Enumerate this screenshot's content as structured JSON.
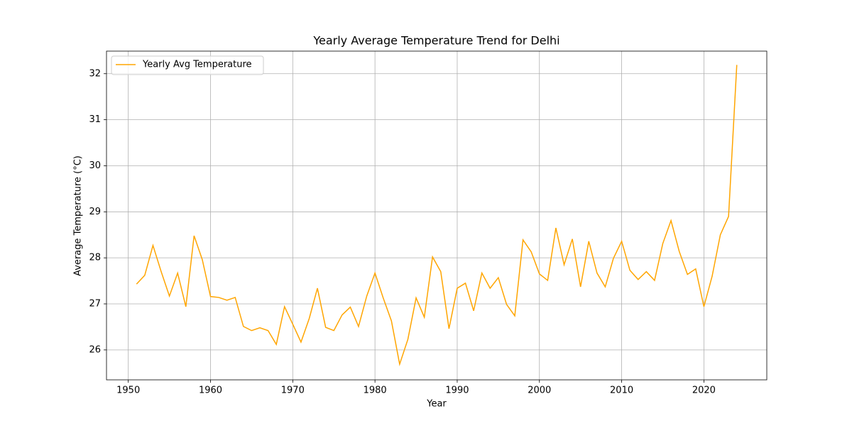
{
  "chart_data": {
    "type": "line",
    "title": "Yearly Average Temperature Trend for Delhi",
    "x_label": "Year",
    "y_label": "Average Temperature (°C)",
    "x": [
      1951,
      1952,
      1953,
      1954,
      1955,
      1956,
      1957,
      1958,
      1959,
      1960,
      1961,
      1962,
      1963,
      1964,
      1965,
      1966,
      1967,
      1968,
      1969,
      1970,
      1971,
      1972,
      1973,
      1974,
      1975,
      1976,
      1977,
      1978,
      1979,
      1980,
      1981,
      1982,
      1983,
      1984,
      1985,
      1986,
      1987,
      1988,
      1989,
      1990,
      1991,
      1992,
      1993,
      1994,
      1995,
      1996,
      1997,
      1998,
      1999,
      2000,
      2001,
      2002,
      2003,
      2004,
      2005,
      2006,
      2007,
      2008,
      2009,
      2010,
      2011,
      2012,
      2013,
      2014,
      2015,
      2016,
      2017,
      2018,
      2019,
      2020,
      2021,
      2022,
      2023,
      2024
    ],
    "series": [
      {
        "name": "Yearly Avg Temperature",
        "color": "#ffa500",
        "values": [
          27.43,
          27.62,
          28.27,
          27.7,
          27.17,
          27.67,
          26.94,
          28.48,
          27.96,
          27.16,
          27.14,
          27.08,
          27.14,
          26.51,
          26.42,
          26.48,
          26.42,
          26.12,
          26.94,
          26.56,
          26.17,
          26.68,
          27.34,
          26.49,
          26.42,
          26.76,
          26.93,
          26.51,
          27.17,
          27.67,
          27.13,
          26.63,
          25.69,
          26.23,
          27.13,
          26.71,
          28.02,
          27.7,
          26.46,
          27.34,
          27.45,
          26.85,
          27.67,
          27.34,
          27.57,
          26.99,
          26.74,
          28.39,
          28.13,
          27.65,
          27.51,
          28.65,
          27.85,
          28.41,
          27.37,
          28.36,
          27.67,
          27.37,
          27.99,
          28.36,
          27.73,
          27.53,
          27.7,
          27.51,
          28.31,
          28.81,
          28.14,
          27.64,
          27.76,
          26.94,
          27.6,
          28.5,
          28.9,
          32.19
        ]
      }
    ],
    "xlim": [
      1947.35,
      2027.65
    ],
    "ylim": [
      25.35,
      32.49
    ],
    "xticks": [
      1950,
      1960,
      1970,
      1980,
      1990,
      2000,
      2010,
      2020
    ],
    "yticks": [
      26,
      27,
      28,
      29,
      30,
      31,
      32
    ],
    "grid": true,
    "legend": "upper-left"
  }
}
